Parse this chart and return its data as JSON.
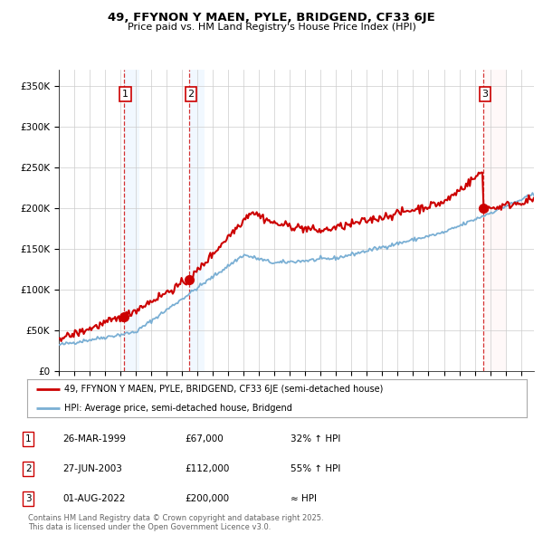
{
  "title": "49, FFYNON Y MAEN, PYLE, BRIDGEND, CF33 6JE",
  "subtitle": "Price paid vs. HM Land Registry's House Price Index (HPI)",
  "ylim": [
    0,
    370000
  ],
  "yticks": [
    0,
    50000,
    100000,
    150000,
    200000,
    250000,
    300000,
    350000
  ],
  "ytick_labels": [
    "£0",
    "£50K",
    "£100K",
    "£150K",
    "£200K",
    "£250K",
    "£300K",
    "£350K"
  ],
  "xlim_start": 1995.0,
  "xlim_end": 2025.83,
  "sale_dates": [
    1999.23,
    2003.49,
    2022.58
  ],
  "sale_prices": [
    67000,
    112000,
    200000
  ],
  "sale_labels": [
    "1",
    "2",
    "3"
  ],
  "red_line_color": "#cc0000",
  "blue_line_color": "#7aafd4",
  "dot_color": "#cc0000",
  "vline_color": "#cc0000",
  "legend_line1": "49, FFYNON Y MAEN, PYLE, BRIDGEND, CF33 6JE (semi-detached house)",
  "legend_line2": "HPI: Average price, semi-detached house, Bridgend",
  "table_entries": [
    [
      "1",
      "26-MAR-1999",
      "£67,000",
      "32% ↑ HPI"
    ],
    [
      "2",
      "27-JUN-2003",
      "£112,000",
      "55% ↑ HPI"
    ],
    [
      "3",
      "01-AUG-2022",
      "£200,000",
      "≈ HPI"
    ]
  ],
  "footer": "Contains HM Land Registry data © Crown copyright and database right 2025.\nThis data is licensed under the Open Government Licence v3.0.",
  "background_color": "#ffffff",
  "grid_color": "#cccccc",
  "shade_color_blue": "#ddeeff",
  "shade_color_red": "#ffeeee"
}
